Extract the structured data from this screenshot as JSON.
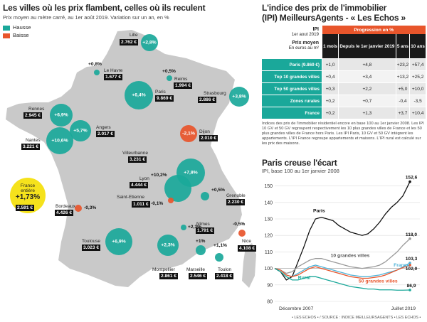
{
  "left": {
    "title": "Les villes où les prix flambent, celles où ils reculent",
    "subtitle": "Prix moyen au mètre carré, au 1er août 2019. Variation sur un an, en %",
    "legend": [
      {
        "label": "Hausse",
        "color": "#1aa89a"
      },
      {
        "label": "Baisse",
        "color": "#e8552b"
      }
    ],
    "france_badge": {
      "line1": "France",
      "line2": "entière",
      "value": "+1,73%",
      "price": "2.591 €"
    },
    "cities": [
      {
        "name": "Lille",
        "pct": "+2,8%",
        "price": "2.762 €",
        "trend": "up"
      },
      {
        "name": "Le Havre",
        "pct": "+0,8%",
        "price": "1.677 €",
        "trend": "up"
      },
      {
        "name": "Reims",
        "pct": "+0,5%",
        "price": "1.994 €",
        "trend": "up"
      },
      {
        "name": "Paris",
        "pct": "+6,4%",
        "price": "9.869 €",
        "trend": "up"
      },
      {
        "name": "Strasbourg",
        "pct": "+3,8%",
        "price": "2.886 €",
        "trend": "up"
      },
      {
        "name": "Rennes",
        "pct": "+6,9%",
        "price": "2.945 €",
        "trend": "up"
      },
      {
        "name": "Angers",
        "pct": "+5,7%",
        "price": "2.017 €",
        "trend": "up"
      },
      {
        "name": "Nantes",
        "pct": "+10,6%",
        "price": "3.221 €",
        "trend": "up"
      },
      {
        "name": "Dijon",
        "pct": "-2,1%",
        "price": "2.010 €",
        "trend": "down"
      },
      {
        "name": "Villeurbanne",
        "pct": "+7,8%",
        "price": "3.231 €",
        "trend": "up"
      },
      {
        "name": "Lyon",
        "pct": "+10,2%",
        "price": "4.444 €",
        "trend": "up"
      },
      {
        "name": "Saint-Etienne",
        "pct": "-0,1%",
        "price": "1.011 €",
        "trend": "down"
      },
      {
        "name": "Grenoble",
        "pct": "+0,5%",
        "price": "2.230 €",
        "trend": "up"
      },
      {
        "name": "Bordeaux",
        "pct": "-0,3%",
        "price": "4.426 €",
        "trend": "down"
      },
      {
        "name": "Toulouse",
        "pct": "+6,9%",
        "price": "3.023 €",
        "trend": "up"
      },
      {
        "name": "Nîmes",
        "pct": "+2,3%",
        "price": "1.791 €",
        "trend": "up"
      },
      {
        "name": "Montpellier",
        "pct": "+2,3%",
        "price": "2.861 €",
        "trend": "up"
      },
      {
        "name": "Marseille",
        "pct": "+1%",
        "price": "2.546 €",
        "trend": "up"
      },
      {
        "name": "Toulon",
        "pct": "+1,1%",
        "price": "2.418 €",
        "trend": "up"
      },
      {
        "name": "Nice",
        "pct": "-0,5%",
        "price": "4.108 €",
        "trend": "down"
      }
    ]
  },
  "right": {
    "title_line1": "L'indice des prix de l'immobilier",
    "title_line2": "(IPI) MeilleursAgents - « Les Echos »",
    "table": {
      "head_ipi": "IPI",
      "head_date": "1er aout 2019",
      "head_price": "Prix moyen",
      "head_unit": "En euros au m²",
      "head_group": "Progression en %",
      "columns": [
        "1 mois",
        "Depuis le 1er janvier 2019",
        "5 ans",
        "10 ans"
      ],
      "rows": [
        {
          "label": "Paris (9.869 €)",
          "values": [
            "+1,0",
            "+4,8",
            "+23,2",
            "+57,4"
          ]
        },
        {
          "label": "Top 10 grandes villes",
          "values": [
            "+0,4",
            "+3,4",
            "+13,2",
            "+25,2"
          ]
        },
        {
          "label": "Top 50 grandes villes",
          "values": [
            "+0,3",
            "+2,2",
            "+5,0",
            "+10,0"
          ]
        },
        {
          "label": "Zones rurales",
          "values": [
            "+0,2",
            "+0,7",
            "-0,4",
            "-3,5"
          ]
        },
        {
          "label": "France",
          "values": [
            "+0,2",
            "+1,3",
            "+3,7",
            "+10,4"
          ]
        }
      ],
      "note": "Indices des prix de l'immobilier résidentiel encore en base 100 au 1er janvier 2008. Les IPI 10 GV et 50 GV regroupent respectivement les 10 plus grandes villes de France et les 50 plus grandes villes de France hors Paris. Les IPI Paris, 10 GV et 50 GV intègrent les appartements. L'IPI France regroupe appartements et maisons. L'IPI rural est calculé sur les prix des maisons."
    },
    "chart_title": "Paris creuse l'écart",
    "chart_subtitle": "IPI, base 100 au 1er janvier 2008"
  },
  "footer": "• LES ECHOS • / SOURCE : INDICE MEILLEURSAGENTS • LES ECHOS •",
  "chart_data": {
    "type": "line",
    "title": "Paris creuse l'écart",
    "subtitle": "IPI, base 100 au 1er janvier 2008",
    "x_labels": [
      "Décembre 2007",
      "Juillet 2019"
    ],
    "x": [
      2008.0,
      2008.5,
      2009.0,
      2009.5,
      2010.0,
      2010.5,
      2011.0,
      2011.5,
      2012.0,
      2012.5,
      2013.0,
      2013.5,
      2014.0,
      2014.5,
      2015.0,
      2015.5,
      2016.0,
      2016.5,
      2017.0,
      2017.5,
      2018.0,
      2018.5,
      2019.0,
      2019.6
    ],
    "ylim": [
      80,
      155
    ],
    "yticks": [
      80,
      90,
      100,
      110,
      120,
      130,
      140,
      150
    ],
    "end_labels": [
      "152,6",
      "118,0",
      "103,3",
      "102,0",
      "86,9"
    ],
    "series": [
      {
        "name": "Paris",
        "color": "#111111",
        "values": [
          100,
          98,
          93,
          95,
          104,
          113,
          123,
          130,
          131,
          130,
          129,
          126,
          124,
          122,
          121,
          120,
          121,
          124,
          128,
          133,
          137,
          140,
          144,
          152.6
        ]
      },
      {
        "name": "10 grandes villes",
        "color": "#9a9a9a",
        "values": [
          100,
          99,
          97,
          98,
          101,
          103,
          105,
          106,
          106,
          105,
          104,
          103,
          102,
          101,
          100.5,
          100,
          100.5,
          101,
          102,
          104,
          107,
          110,
          114,
          118.0
        ]
      },
      {
        "name": "France",
        "color": "#4fb3d8",
        "values": [
          100,
          99,
          96,
          95,
          97,
          99,
          101,
          102,
          101,
          100,
          99,
          98,
          97,
          96,
          95.5,
          95,
          95,
          95.5,
          96,
          97,
          98,
          99,
          101,
          103.3
        ]
      },
      {
        "name": "50 grandes villes",
        "color": "#e8552b",
        "values": [
          100,
          99,
          96,
          95,
          96,
          98,
          100,
          101,
          100,
          99,
          98,
          97,
          96,
          95,
          94.5,
          94,
          94,
          94.5,
          95,
          96,
          97.5,
          99,
          100.5,
          102.0
        ]
      },
      {
        "name": "Rural",
        "color": "#1aa89a",
        "values": [
          100,
          98,
          95,
          93,
          93,
          94,
          95,
          95,
          94,
          93,
          92,
          91,
          90,
          89,
          88.5,
          88,
          87.5,
          87.5,
          87,
          87,
          87,
          86.8,
          86.8,
          86.9
        ]
      }
    ]
  }
}
